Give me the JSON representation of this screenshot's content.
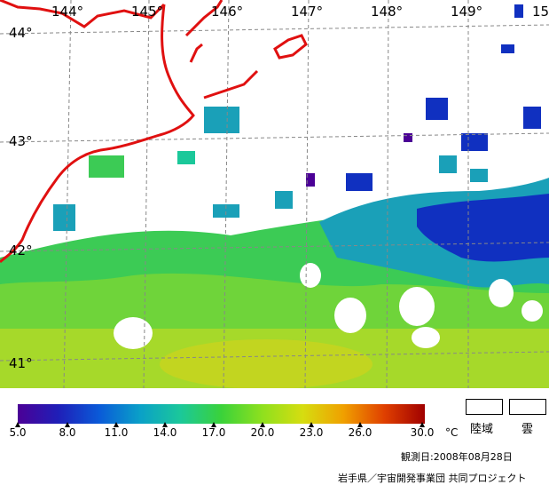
{
  "map": {
    "lon_labels": [
      "144°",
      "145°",
      "146°",
      "147°",
      "148°",
      "149°",
      "15"
    ],
    "lat_labels": [
      "44°",
      "43°",
      "42°",
      "41°"
    ]
  },
  "colorbar": {
    "ticks": [
      "5.0",
      "8.0",
      "11.0",
      "14.0",
      "17.0",
      "20.0",
      "23.0",
      "26.0",
      "30.0"
    ],
    "unit": "°C",
    "colors": [
      "#4b0096",
      "#1f1fb8",
      "#0a5ad8",
      "#0aa0c8",
      "#1bc89a",
      "#3ad23a",
      "#8ee01e",
      "#d6dd10",
      "#f0a000",
      "#e04000",
      "#a00000"
    ]
  },
  "legend": {
    "land_label": "陸域",
    "cloud_label": "雲"
  },
  "footer": {
    "obs_date": "観測日:2008年08月28日",
    "credit": "岩手県／宇宙開発事業団 共同プロジェクト"
  }
}
